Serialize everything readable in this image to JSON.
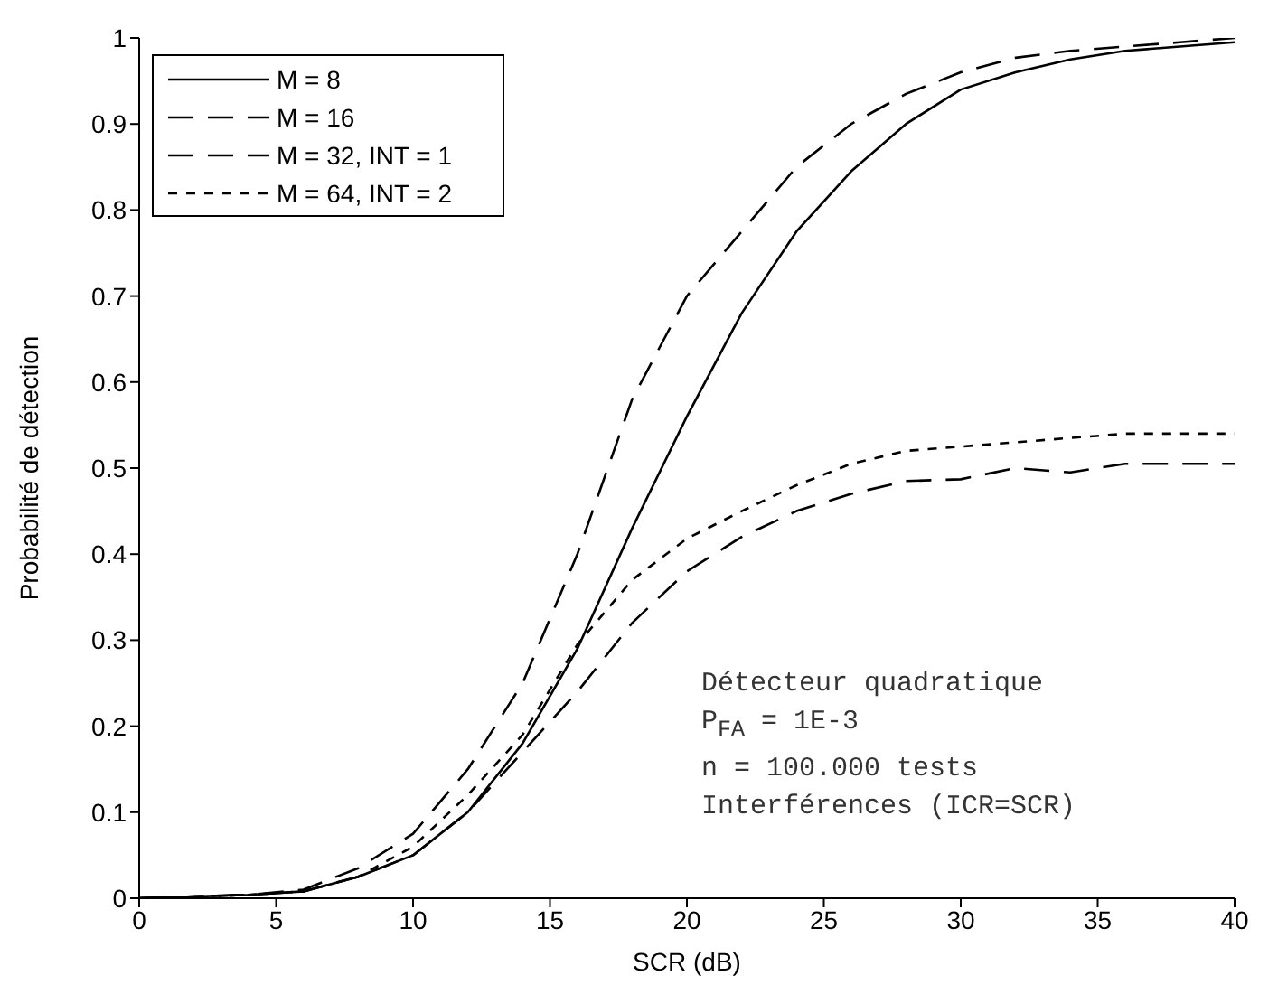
{
  "chart_data": {
    "type": "line",
    "xlabel": "SCR (dB)",
    "ylabel": "Probabilité de détection",
    "x": [
      0,
      2,
      4,
      6,
      8,
      10,
      12,
      14,
      16,
      18,
      20,
      22,
      24,
      26,
      28,
      30,
      32,
      34,
      36,
      38,
      40
    ],
    "series": [
      {
        "name": "M = 8",
        "color": "#000000",
        "line_style": "solid",
        "values": [
          0,
          0.002,
          0.004,
          0.008,
          0.025,
          0.05,
          0.1,
          0.18,
          0.29,
          0.43,
          0.56,
          0.68,
          0.775,
          0.845,
          0.9,
          0.94,
          0.96,
          0.975,
          0.985,
          0.99,
          0.995
        ]
      },
      {
        "name": "M = 16",
        "color": "#000000",
        "line_style": "dashed",
        "values": [
          0,
          0.002,
          0.004,
          0.01,
          0.035,
          0.075,
          0.15,
          0.25,
          0.4,
          0.58,
          0.7,
          0.775,
          0.85,
          0.9,
          0.935,
          0.96,
          0.977,
          0.985,
          0.99,
          0.995,
          1
        ]
      },
      {
        "name": "M = 32, INT = 1",
        "color": "#000000",
        "line_style": "dashed",
        "values": [
          0,
          0.002,
          0.004,
          0.008,
          0.025,
          0.05,
          0.1,
          0.17,
          0.24,
          0.32,
          0.38,
          0.42,
          0.45,
          0.47,
          0.485,
          0.487,
          0.5,
          0.495,
          0.505,
          0.505,
          0.505
        ]
      },
      {
        "name": "M = 64, INT = 2",
        "color": "#000000",
        "line_style": "dotted",
        "values": [
          0,
          0.002,
          0.004,
          0.008,
          0.025,
          0.06,
          0.12,
          0.19,
          0.295,
          0.37,
          0.418,
          0.45,
          0.48,
          0.505,
          0.52,
          0.525,
          0.53,
          0.535,
          0.54,
          0.54,
          0.54
        ]
      }
    ],
    "xlim": [
      0,
      40
    ],
    "xticks": [
      0,
      5,
      10,
      15,
      20,
      25,
      30,
      35,
      40
    ],
    "ylim": [
      0,
      1
    ],
    "yticks": [
      0,
      0.1,
      0.2,
      0.3,
      0.4,
      0.5,
      0.6,
      0.7,
      0.8,
      0.9,
      1
    ],
    "grid": false,
    "legend": "top left",
    "marker": "none",
    "annotations": [
      "Détecteur quadratique",
      "P$_{FA}$ = 1E-3",
      "n = 100.000 tests",
      "Interférences (ICR=SCR)"
    ]
  }
}
